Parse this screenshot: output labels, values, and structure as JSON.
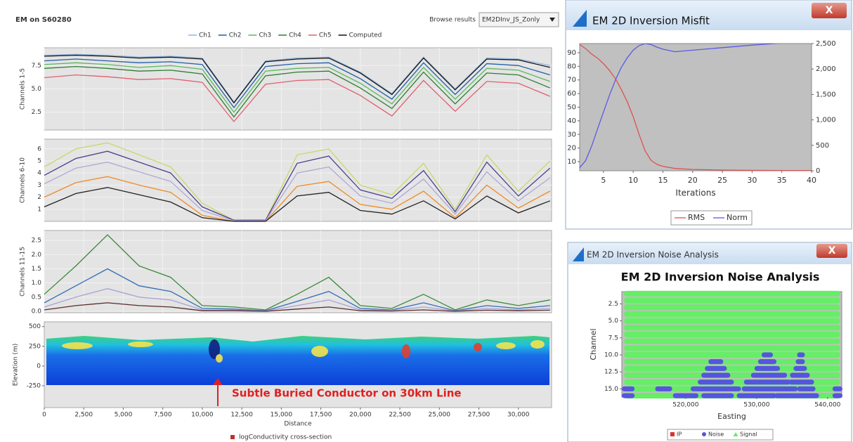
{
  "em_panel": {
    "title": "EM on S60280",
    "browse_label": "Browse results",
    "browse_value": "EM2DInv_JS_Zonly",
    "x": [
      0,
      2000,
      4000,
      6000,
      8000,
      10000,
      12000,
      14000,
      16000,
      18000,
      20000,
      22000,
      24000,
      26000,
      28000,
      30000,
      32000
    ],
    "xlim": [
      0,
      32100
    ],
    "xticks": [
      0,
      {
        "value": 2500,
        "label": "2,500"
      },
      {
        "value": 5000,
        "label": "5,000"
      },
      {
        "value": 7500,
        "label": "7,500"
      },
      {
        "value": 10000,
        "label": "10,000"
      },
      {
        "value": 12500,
        "label": "12,500"
      },
      {
        "value": 15000,
        "label": "15,000"
      },
      {
        "value": 17500,
        "label": "17,500"
      },
      {
        "value": 20000,
        "label": "20,000"
      },
      {
        "value": 22500,
        "label": "22,500"
      },
      {
        "value": 25000,
        "label": "25,000"
      },
      {
        "value": 27500,
        "label": "27,500"
      },
      {
        "value": 30000,
        "label": "30,000"
      }
    ],
    "xlabel": "Distance",
    "panels": [
      {
        "ylabel": "Channels 1-5",
        "ylim": [
          0.6,
          9.4
        ],
        "yticks": [
          2.5,
          {
            "value": 5,
            "label": "5.0"
          },
          7.5
        ],
        "series": [
          {
            "name": "Ch1",
            "color": "#8db4e2",
            "values": [
              8.6,
              8.7,
              8.6,
              8.4,
              8.5,
              8.3,
              3.6,
              8.0,
              8.3,
              8.4,
              6.8,
              4.5,
              8.4,
              5.0,
              8.3,
              8.2,
              7.5
            ]
          },
          {
            "name": "Ch2",
            "color": "#1f5fa8",
            "values": [
              8.0,
              8.2,
              8.0,
              7.8,
              7.9,
              7.6,
              3.0,
              7.4,
              7.7,
              7.8,
              6.1,
              3.9,
              7.8,
              4.4,
              7.7,
              7.5,
              6.5
            ]
          },
          {
            "name": "Ch3",
            "color": "#5cb85c",
            "values": [
              7.6,
              7.8,
              7.6,
              7.3,
              7.5,
              7.1,
              2.5,
              6.9,
              7.2,
              7.3,
              5.6,
              3.4,
              7.3,
              3.9,
              7.2,
              7.0,
              5.8
            ]
          },
          {
            "name": "Ch4",
            "color": "#2e7d32",
            "values": [
              7.2,
              7.4,
              7.2,
              6.9,
              7.0,
              6.6,
              2.0,
              6.4,
              6.8,
              6.9,
              5.1,
              2.9,
              6.8,
              3.4,
              6.7,
              6.5,
              5.1
            ]
          },
          {
            "name": "Ch5",
            "color": "#e06070",
            "values": [
              6.2,
              6.5,
              6.3,
              6.0,
              6.1,
              5.7,
              1.5,
              5.5,
              5.9,
              6.0,
              4.3,
              2.1,
              5.9,
              2.6,
              5.8,
              5.6,
              4.2
            ]
          },
          {
            "name": "Computed",
            "color": "#111111",
            "values": [
              8.5,
              8.6,
              8.5,
              8.3,
              8.4,
              8.2,
              3.5,
              7.9,
              8.2,
              8.3,
              6.7,
              4.4,
              8.3,
              4.9,
              8.2,
              8.1,
              7.3
            ]
          }
        ]
      },
      {
        "ylabel": "Channels 6-10",
        "ylim": [
          0,
          6.8
        ],
        "yticks": [
          1,
          2,
          3,
          4,
          5,
          6
        ],
        "series": [
          {
            "color": "#c8d86a",
            "values": [
              4.5,
              6.0,
              6.5,
              5.5,
              4.5,
              1.5,
              0.1,
              0.1,
              5.5,
              6.0,
              3.0,
              2.2,
              4.8,
              1.0,
              5.5,
              2.5,
              5.0
            ]
          },
          {
            "color": "#4b3f8f",
            "values": [
              3.8,
              5.2,
              5.8,
              4.9,
              4.0,
              1.2,
              0.1,
              0.1,
              4.8,
              5.4,
              2.6,
              1.9,
              4.2,
              0.8,
              4.9,
              2.1,
              4.4
            ]
          },
          {
            "color": "#b0a8d8",
            "values": [
              3.1,
              4.4,
              4.9,
              4.1,
              3.3,
              0.9,
              0.05,
              0.05,
              4.0,
              4.5,
              2.1,
              1.5,
              3.5,
              0.6,
              4.1,
              1.7,
              3.6
            ]
          },
          {
            "color": "#f08a24",
            "values": [
              2.0,
              3.2,
              3.7,
              3.0,
              2.4,
              0.5,
              0.0,
              0.0,
              2.9,
              3.3,
              1.4,
              1.0,
              2.5,
              0.3,
              3.0,
              1.1,
              2.5
            ]
          },
          {
            "color": "#222222",
            "values": [
              1.2,
              2.3,
              2.8,
              2.2,
              1.6,
              0.3,
              0.0,
              0.0,
              2.1,
              2.4,
              0.9,
              0.6,
              1.7,
              0.2,
              2.1,
              0.7,
              1.7
            ]
          }
        ]
      },
      {
        "ylabel": "Channels 11-15",
        "ylim": [
          -0.05,
          2.85
        ],
        "yticks": [
          {
            "value": 0,
            "label": "0.0"
          },
          0.5,
          {
            "value": 1,
            "label": "1.0"
          },
          1.5,
          {
            "value": 2,
            "label": "2.0"
          },
          2.5
        ],
        "series": [
          {
            "color": "#3a8a3a",
            "values": [
              0.6,
              1.6,
              2.7,
              1.6,
              1.2,
              0.2,
              0.15,
              0.05,
              0.6,
              1.2,
              0.2,
              0.1,
              0.6,
              0.05,
              0.4,
              0.2,
              0.4
            ]
          },
          {
            "color": "#2f6db5",
            "values": [
              0.3,
              0.9,
              1.5,
              0.9,
              0.7,
              0.1,
              0.08,
              0.02,
              0.35,
              0.7,
              0.1,
              0.05,
              0.3,
              0.02,
              0.2,
              0.1,
              0.2
            ]
          },
          {
            "color": "#a9a3d6",
            "values": [
              0.15,
              0.5,
              0.8,
              0.5,
              0.4,
              0.05,
              0.04,
              0.01,
              0.2,
              0.4,
              0.05,
              0.03,
              0.15,
              0.01,
              0.1,
              0.05,
              0.1
            ]
          },
          {
            "color": "#5a2a2a",
            "values": [
              0.05,
              0.2,
              0.3,
              0.2,
              0.15,
              0.02,
              0.02,
              0,
              0.08,
              0.15,
              0.02,
              0.01,
              0.05,
              0,
              0.04,
              0.02,
              0.04
            ]
          }
        ]
      }
    ],
    "section": {
      "ylabel": "Elevation (m)",
      "ylim": [
        -527,
        560
      ],
      "yticks": [
        -250,
        0,
        250,
        500
      ],
      "annotation": "Subtle Buried Conductor on 30km Line",
      "legend": "logConductivity cross-section"
    }
  },
  "misfit_window": {
    "title": "EM 2D Inversion Misfit",
    "close": "X",
    "chart_data": {
      "type": "line",
      "x": [
        1,
        2,
        3,
        4,
        5,
        6,
        7,
        8,
        9,
        10,
        11,
        12,
        13,
        14,
        15,
        17,
        20,
        25,
        30,
        35,
        40
      ],
      "xlim": [
        1,
        40
      ],
      "xticks": [
        5,
        10,
        15,
        20,
        25,
        30,
        35,
        40
      ],
      "xlabel": "Iterations",
      "ylim": [
        3.3,
        96.7
      ],
      "yticks": [
        10,
        20,
        30,
        40,
        50,
        60,
        70,
        80,
        90
      ],
      "y2lim": [
        0,
        2500
      ],
      "y2ticks": [
        0,
        500,
        {
          "value": 1000,
          "label": "1,000"
        },
        {
          "value": 1500,
          "label": "1,500"
        },
        {
          "value": 2000,
          "label": "2,000"
        },
        {
          "value": 2500,
          "label": "2,500"
        }
      ],
      "series": [
        {
          "name": "RMS",
          "color": "#e05050",
          "values": [
            96,
            93,
            89,
            86,
            82,
            77,
            71,
            63,
            54,
            43,
            30,
            18,
            11,
            8,
            6.5,
            5,
            4.3,
            3.8,
            3.6,
            3.5,
            3.5
          ]
        },
        {
          "name": "Norm",
          "color": "#5a5ae6",
          "axis": "y2",
          "values": [
            60,
            200,
            480,
            820,
            1150,
            1480,
            1780,
            2030,
            2220,
            2370,
            2460,
            2500,
            2480,
            2430,
            2390,
            2340,
            2370,
            2420,
            2470,
            2510,
            2530
          ]
        }
      ]
    }
  },
  "noise_window": {
    "title": "EM 2D Inversion Noise Analysis",
    "close": "X",
    "chart_data": {
      "type": "scatter",
      "title": "EM 2D Inversion Noise Analysis",
      "xlabel": "Easting",
      "ylabel": "Channel",
      "xlim": [
        511000,
        542000
      ],
      "xticks": [
        {
          "value": 520000,
          "label": "520,000"
        },
        {
          "value": 530000,
          "label": "530,000"
        },
        {
          "value": 540000,
          "label": "540,000"
        }
      ],
      "ylim": [
        16.2,
        0.7
      ],
      "yticks": [
        2.5,
        {
          "value": 5,
          "label": "5.0"
        },
        7.5,
        {
          "value": 10,
          "label": "10.0"
        },
        12.5,
        {
          "value": 15,
          "label": "15.0"
        }
      ],
      "series": [
        {
          "name": "IP",
          "color": "#e03030"
        },
        {
          "name": "Noise",
          "color": "#5555dd",
          "segments": [
            {
              "channel": 16,
              "x": [
                511300,
                512500
              ]
            },
            {
              "channel": 16,
              "x": [
                518500,
                521500
              ]
            },
            {
              "channel": 16,
              "x": [
                522500,
                526500
              ]
            },
            {
              "channel": 16,
              "x": [
                527500,
                532500
              ]
            },
            {
              "channel": 16,
              "x": [
                532800,
                538500
              ]
            },
            {
              "channel": 16,
              "x": [
                541000,
                541800
              ]
            },
            {
              "channel": 15,
              "x": [
                511300,
                512500
              ]
            },
            {
              "channel": 15,
              "x": [
                516000,
                517800
              ]
            },
            {
              "channel": 15,
              "x": [
                521000,
                527500
              ]
            },
            {
              "channel": 15,
              "x": [
                528200,
                535500
              ]
            },
            {
              "channel": 15,
              "x": [
                536000,
                538000
              ]
            },
            {
              "channel": 15,
              "x": [
                541000,
                541800
              ]
            },
            {
              "channel": 14,
              "x": [
                522000,
                526500
              ]
            },
            {
              "channel": 14,
              "x": [
                528500,
                534500
              ]
            },
            {
              "channel": 14,
              "x": [
                534800,
                537800
              ]
            },
            {
              "channel": 13,
              "x": [
                522500,
                526000
              ]
            },
            {
              "channel": 13,
              "x": [
                529500,
                534000
              ]
            },
            {
              "channel": 13,
              "x": [
                535000,
                537200
              ]
            },
            {
              "channel": 12,
              "x": [
                523000,
                525500
              ]
            },
            {
              "channel": 12,
              "x": [
                530000,
                533000
              ]
            },
            {
              "channel": 12,
              "x": [
                535500,
                536800
              ]
            },
            {
              "channel": 11,
              "x": [
                523500,
                525000
              ]
            },
            {
              "channel": 11,
              "x": [
                530500,
                532500
              ]
            },
            {
              "channel": 11,
              "x": [
                535800,
                536500
              ]
            },
            {
              "channel": 10,
              "x": [
                531000,
                532000
              ]
            },
            {
              "channel": 10,
              "x": [
                536000,
                536500
              ]
            }
          ]
        },
        {
          "name": "Signal",
          "color": "#66ee66",
          "channels": [
            1,
            2,
            3,
            4,
            5,
            6,
            7,
            8,
            9,
            10,
            11,
            12,
            13,
            14,
            15,
            16
          ],
          "x_range": [
            511300,
            541800
          ]
        }
      ]
    }
  }
}
